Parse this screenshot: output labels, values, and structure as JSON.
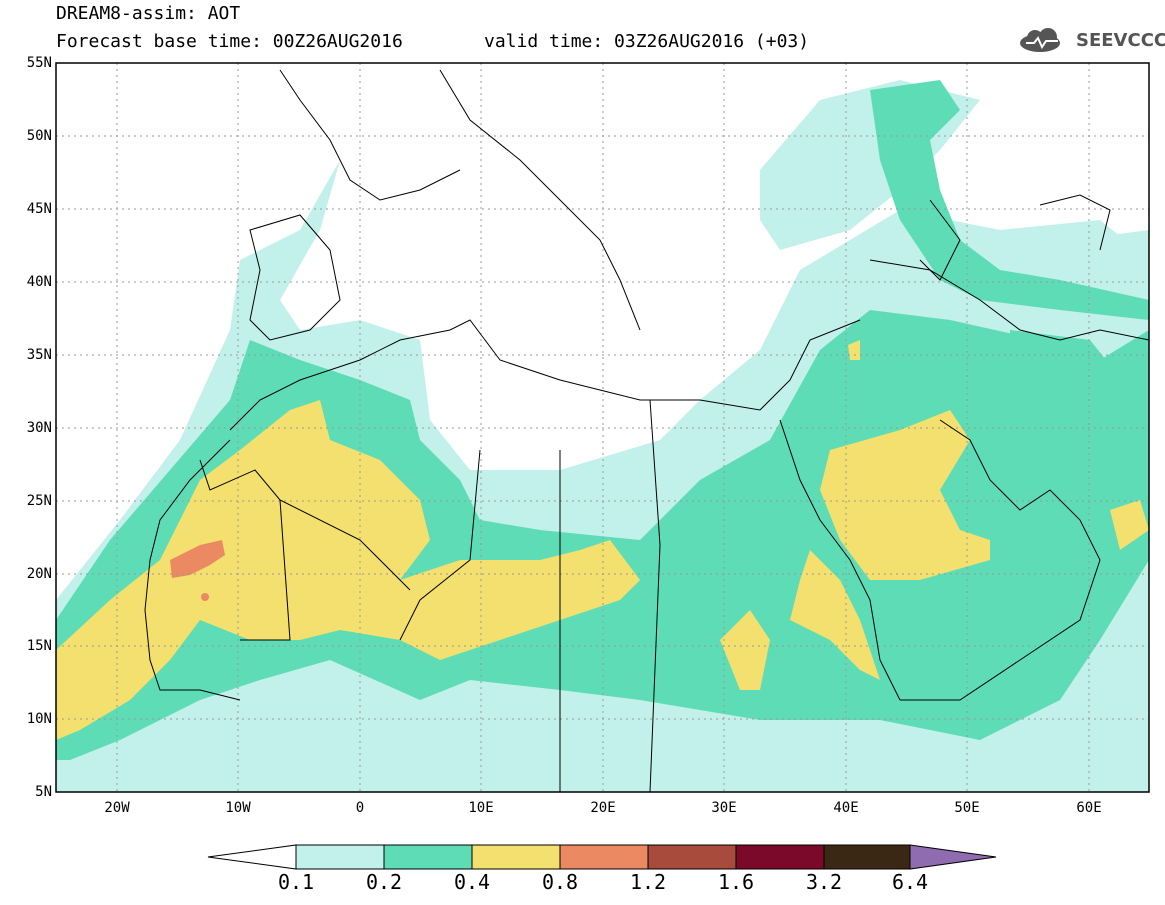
{
  "header": {
    "model": "DREAM8-assim: AOT",
    "forecast": "Forecast base time: 00Z26AUG2016",
    "valid": "valid time: 03Z26AUG2016 (+03)",
    "logo_text": "SEEVCCC"
  },
  "map": {
    "lat_labels": [
      "55N",
      "50N",
      "45N",
      "40N",
      "35N",
      "30N",
      "25N",
      "20N",
      "15N",
      "10N",
      "5N"
    ],
    "lon_labels": [
      "20W",
      "10W",
      "0",
      "10E",
      "20E",
      "30E",
      "40E",
      "50E",
      "60E"
    ],
    "lat_range": [
      5,
      55
    ],
    "lon_range": [
      -25,
      65
    ]
  },
  "colorbar": {
    "thresholds": [
      "0.1",
      "0.2",
      "0.4",
      "0.8",
      "1.2",
      "1.6",
      "3.2",
      "6.4"
    ],
    "colors": [
      "#c2f0ea",
      "#5ddcb6",
      "#f3e06e",
      "#eb8a62",
      "#a84a3c",
      "#7b0a2a",
      "#3a2814",
      "#8f6cb0"
    ]
  }
}
